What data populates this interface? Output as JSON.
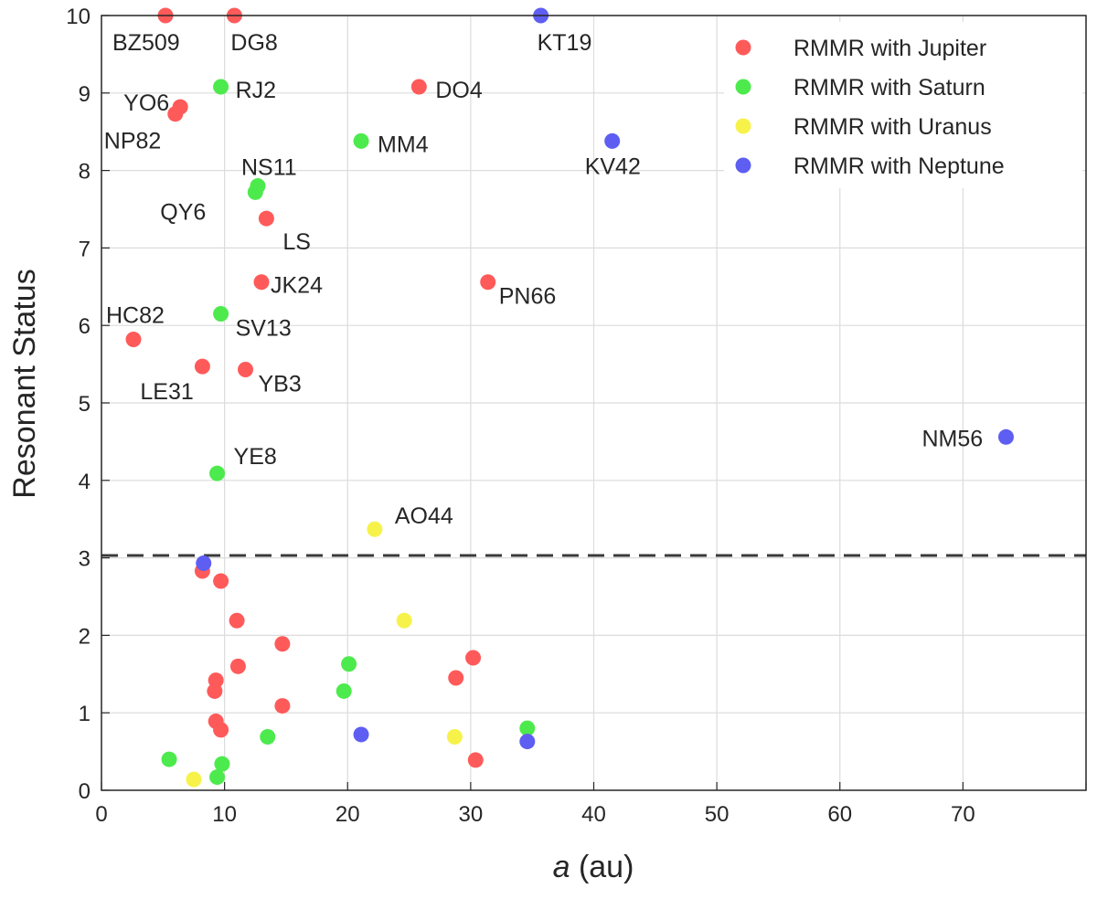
{
  "chart_data": {
    "type": "scatter",
    "title": "",
    "xlabel_italic": "a",
    "xlabel_rest": " (au)",
    "ylabel": "Resonant Status",
    "xlim": [
      0,
      80
    ],
    "ylim": [
      0,
      10
    ],
    "xticks": [
      0,
      10,
      20,
      30,
      40,
      50,
      60,
      70
    ],
    "yticks": [
      0,
      1,
      2,
      3,
      4,
      5,
      6,
      7,
      8,
      9,
      10
    ],
    "grid": true,
    "threshold": 3.03,
    "legend_position": "top-right",
    "series": [
      {
        "name": "RMMR with Jupiter",
        "color": "#ff5a5a",
        "points": [
          {
            "x": 5.2,
            "y": 10.0,
            "label": "BZ509"
          },
          {
            "x": 10.8,
            "y": 10.0,
            "label": "DG8"
          },
          {
            "x": 25.8,
            "y": 9.08,
            "label": "DO4"
          },
          {
            "x": 6.4,
            "y": 8.82,
            "label": "YO6"
          },
          {
            "x": 6.0,
            "y": 8.73,
            "label": "NP82"
          },
          {
            "x": 13.4,
            "y": 7.38,
            "label": "LS"
          },
          {
            "x": 13.0,
            "y": 6.56,
            "label": "JK24"
          },
          {
            "x": 31.4,
            "y": 6.56,
            "label": "PN66"
          },
          {
            "x": 2.6,
            "y": 5.82,
            "label": "HC82"
          },
          {
            "x": 8.2,
            "y": 5.47,
            "label": "LE31"
          },
          {
            "x": 11.7,
            "y": 5.43,
            "label": "YB3"
          },
          {
            "x": 8.2,
            "y": 2.83
          },
          {
            "x": 9.7,
            "y": 2.7
          },
          {
            "x": 11.0,
            "y": 2.19
          },
          {
            "x": 14.7,
            "y": 1.89
          },
          {
            "x": 11.1,
            "y": 1.6
          },
          {
            "x": 9.3,
            "y": 1.42
          },
          {
            "x": 9.2,
            "y": 1.28
          },
          {
            "x": 14.7,
            "y": 1.09
          },
          {
            "x": 9.3,
            "y": 0.89
          },
          {
            "x": 9.7,
            "y": 0.78
          },
          {
            "x": 28.8,
            "y": 1.45
          },
          {
            "x": 30.2,
            "y": 1.71
          },
          {
            "x": 30.4,
            "y": 0.39
          }
        ]
      },
      {
        "name": "RMMR with Saturn",
        "color": "#4dea4d",
        "points": [
          {
            "x": 9.7,
            "y": 9.08,
            "label": "RJ2"
          },
          {
            "x": 21.1,
            "y": 8.38,
            "label": "MM4"
          },
          {
            "x": 12.7,
            "y": 7.8,
            "label": "NS11"
          },
          {
            "x": 12.5,
            "y": 7.72,
            "label": "QY6"
          },
          {
            "x": 9.7,
            "y": 6.15,
            "label": "SV13"
          },
          {
            "x": 9.4,
            "y": 4.09,
            "label": "YE8"
          },
          {
            "x": 20.1,
            "y": 1.63
          },
          {
            "x": 19.7,
            "y": 1.28
          },
          {
            "x": 13.5,
            "y": 0.69
          },
          {
            "x": 34.6,
            "y": 0.8
          },
          {
            "x": 5.5,
            "y": 0.4
          },
          {
            "x": 9.8,
            "y": 0.34
          },
          {
            "x": 9.4,
            "y": 0.17
          }
        ]
      },
      {
        "name": "RMMR with Uranus",
        "color": "#f7f24a",
        "points": [
          {
            "x": 22.2,
            "y": 3.37,
            "label": "AO44"
          },
          {
            "x": 24.6,
            "y": 2.19
          },
          {
            "x": 28.7,
            "y": 0.69
          },
          {
            "x": 7.5,
            "y": 0.14
          }
        ]
      },
      {
        "name": "RMMR with Neptune",
        "color": "#5e5ef2",
        "points": [
          {
            "x": 35.7,
            "y": 10.0,
            "label": "KT19"
          },
          {
            "x": 41.5,
            "y": 8.38,
            "label": "KV42"
          },
          {
            "x": 73.5,
            "y": 4.56,
            "label": "NM56"
          },
          {
            "x": 8.3,
            "y": 2.93
          },
          {
            "x": 21.1,
            "y": 0.72
          },
          {
            "x": 34.6,
            "y": 0.63
          }
        ]
      }
    ]
  }
}
